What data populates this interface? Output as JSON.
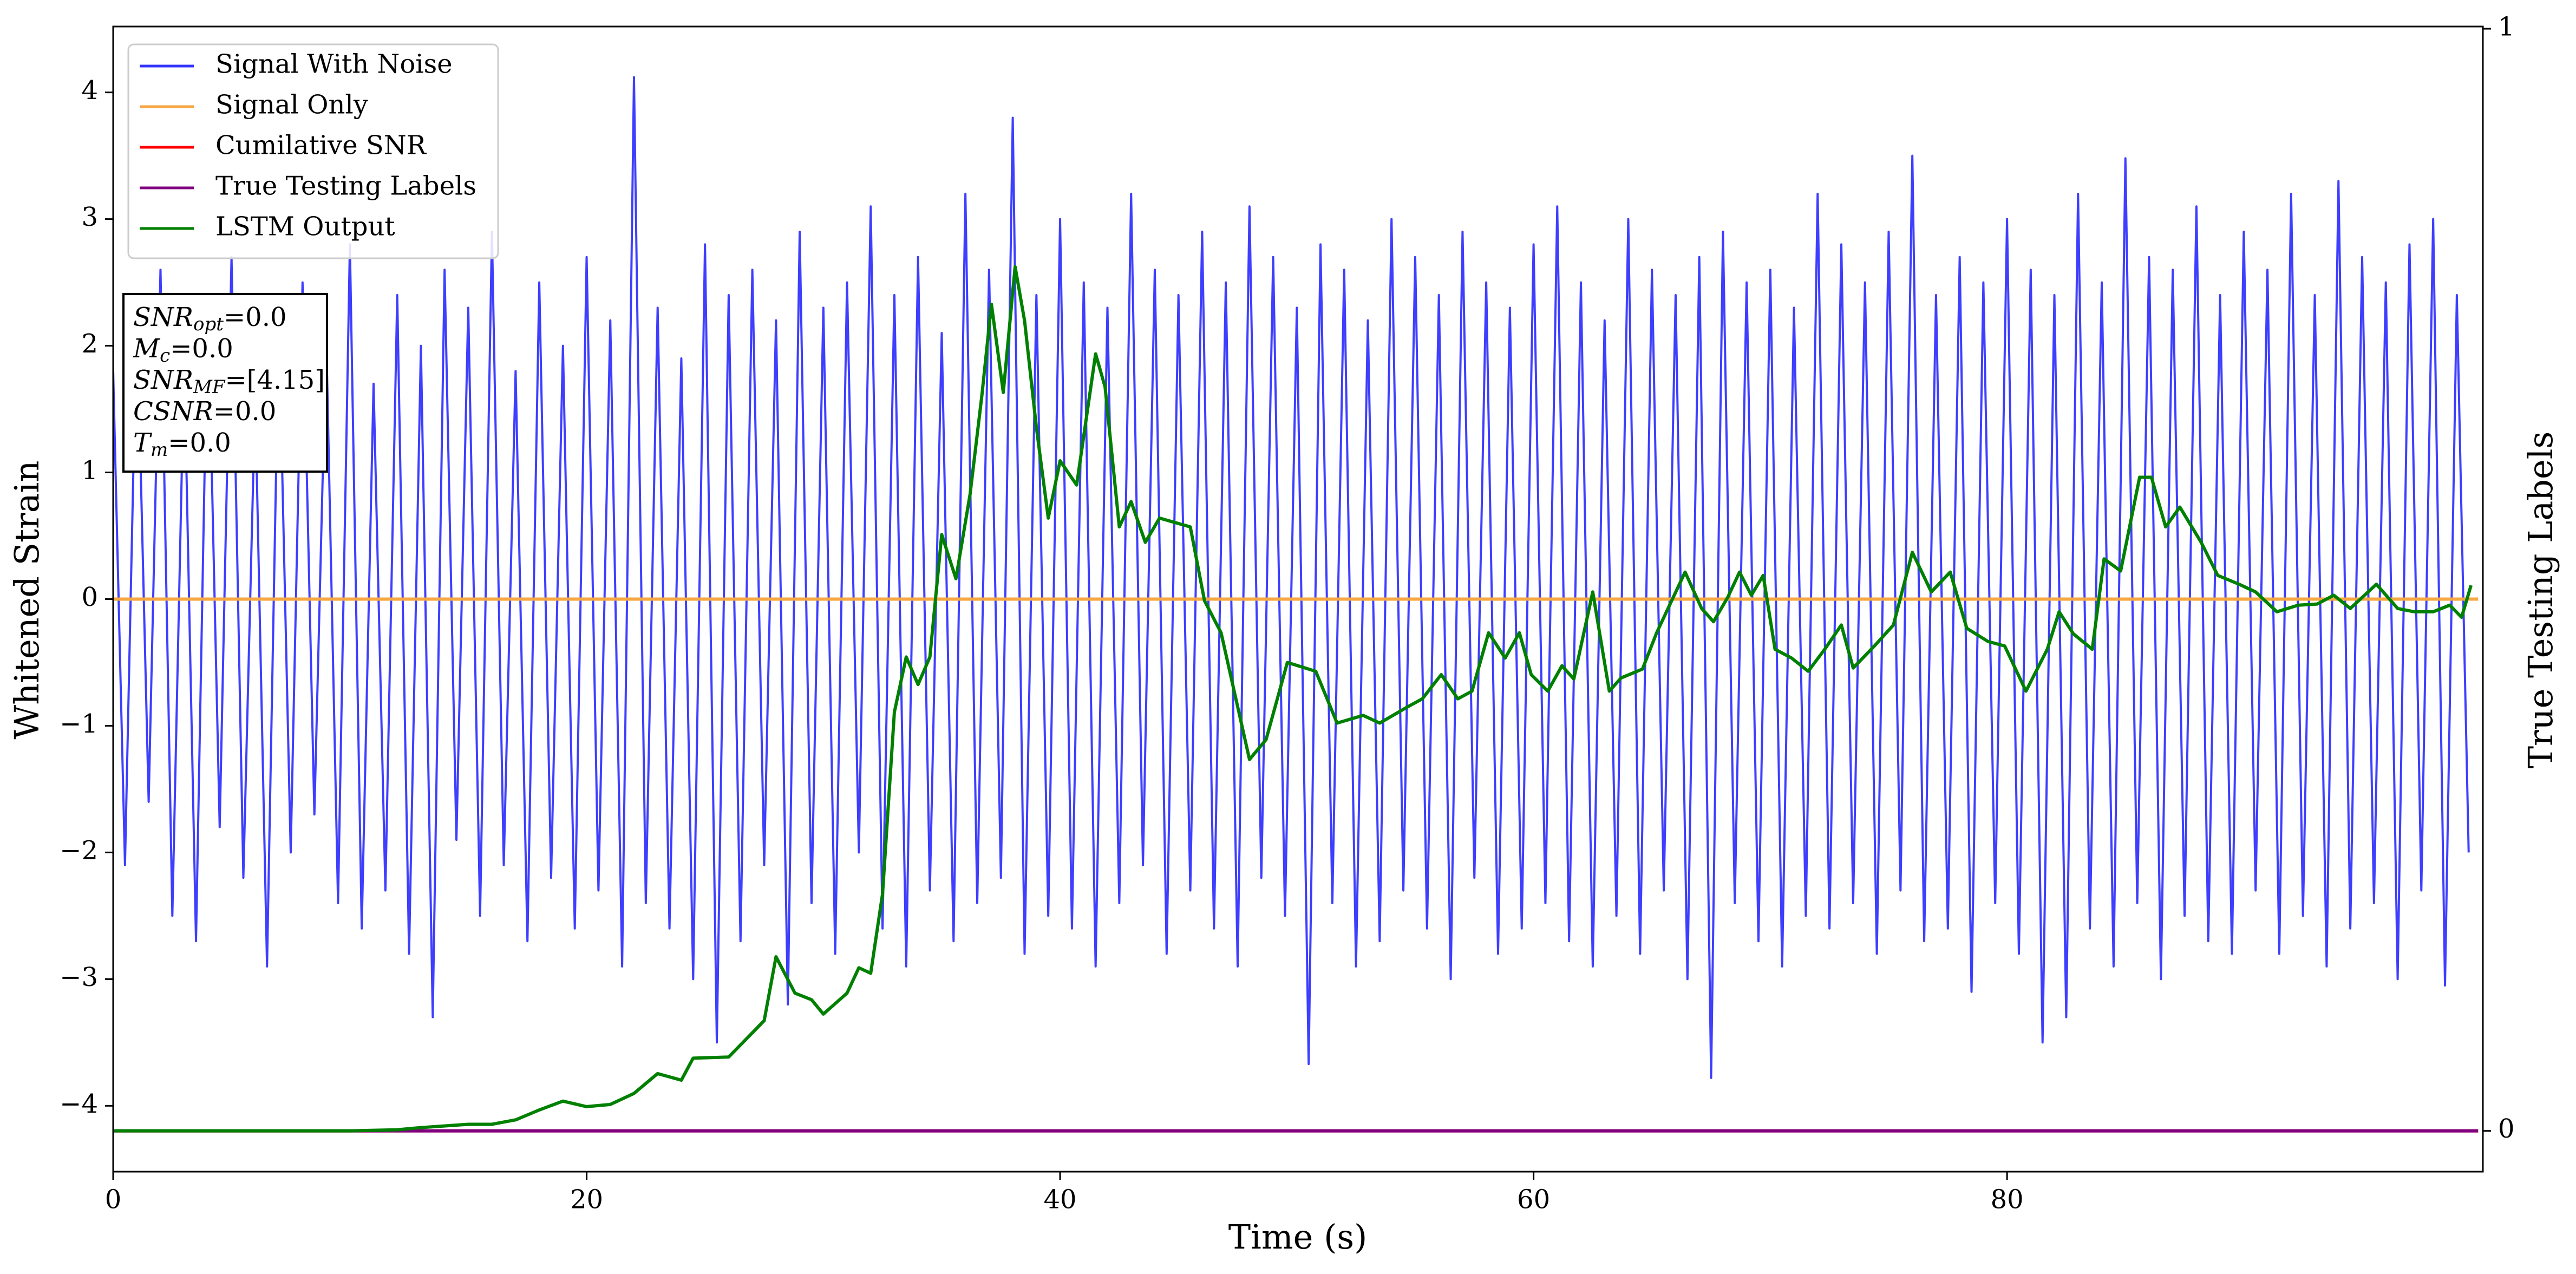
{
  "chart_data": {
    "type": "line",
    "xlabel": "Time (s)",
    "ylabel": "Whitened Strain",
    "y2label": "True Testing Labels",
    "xlim": [
      0,
      100.1
    ],
    "xticks": [
      0,
      20,
      40,
      60,
      80
    ],
    "ylim": [
      -4.52,
      4.52
    ],
    "yticks": [
      {
        "value": -4,
        "label": "−4"
      },
      {
        "value": -3,
        "label": "−3"
      },
      {
        "value": -2,
        "label": "−2"
      },
      {
        "value": -1,
        "label": "−1"
      },
      0,
      1,
      2,
      3,
      4
    ],
    "y2lim": [
      -0.037,
      1.002
    ],
    "y2ticks": [
      0,
      1
    ],
    "legend": "upper left",
    "annotations": [
      {
        "main": "SNR",
        "sub": "opt",
        "rest": "=0.0"
      },
      {
        "main": "M",
        "sub": "c",
        "rest": "=0.0"
      },
      {
        "main": "SNR",
        "sub": "MF",
        "rest": "=[4.15]"
      },
      {
        "main": "CSNR",
        "rest": "=0.0"
      },
      {
        "main": "T",
        "sub": "m",
        "rest": "=0.0"
      }
    ],
    "series": [
      {
        "name": "Signal With Noise",
        "color": "#3434ff",
        "x": [
          0,
          0.5,
          1,
          1.5,
          2,
          2.5,
          3,
          3.5,
          4,
          4.5,
          5,
          5.5,
          6,
          6.5,
          7,
          7.5,
          8,
          8.5,
          9,
          9.5,
          10,
          10.5,
          11,
          11.5,
          12,
          12.5,
          13,
          13.5,
          14,
          14.5,
          15,
          15.5,
          16,
          16.5,
          17,
          17.5,
          18,
          18.5,
          19,
          19.5,
          20,
          20.5,
          21,
          21.5,
          22,
          22.5,
          23,
          23.5,
          24,
          24.5,
          25,
          25.5,
          26,
          26.5,
          27,
          27.5,
          28,
          28.5,
          29,
          29.5,
          30,
          30.5,
          31,
          31.5,
          32,
          32.5,
          33,
          33.5,
          34,
          34.5,
          35,
          35.5,
          36,
          36.5,
          37,
          37.5,
          38,
          38.5,
          39,
          39.5,
          40,
          40.5,
          41,
          41.5,
          42,
          42.5,
          43,
          43.5,
          44,
          44.5,
          45,
          45.5,
          46,
          46.5,
          47,
          47.5,
          48,
          48.5,
          49,
          49.5,
          50,
          50.5,
          51,
          51.5,
          52,
          52.5,
          53,
          53.5,
          54,
          54.5,
          55,
          55.5,
          56,
          56.5,
          57,
          57.5,
          58,
          58.5,
          59,
          59.5,
          60,
          60.5,
          61,
          61.5,
          62,
          62.5,
          63,
          63.5,
          64,
          64.5,
          65,
          65.5,
          66,
          66.5,
          67,
          67.5,
          68,
          68.5,
          69,
          69.5,
          70,
          70.5,
          71,
          71.5,
          72,
          72.5,
          73,
          73.5,
          74,
          74.5,
          75,
          75.5,
          76,
          76.5,
          77,
          77.5,
          78,
          78.5,
          79,
          79.5,
          80,
          80.5,
          81,
          81.5,
          82,
          82.5,
          83,
          83.5,
          84,
          84.5,
          85,
          85.5,
          86,
          86.5,
          87,
          87.5,
          88,
          88.5,
          89,
          89.5,
          90,
          90.5,
          91,
          91.5,
          92,
          92.5,
          93,
          93.5,
          94,
          94.5,
          95,
          95.5,
          96,
          96.5,
          97,
          97.5,
          98,
          98.5,
          99,
          99.5
        ],
        "values": [
          1.8,
          -2.1,
          2.3,
          -1.6,
          2.6,
          -2.5,
          1.9,
          -2.7,
          2.4,
          -1.8,
          2.7,
          -2.2,
          1.6,
          -2.9,
          2.2,
          -2.0,
          2.5,
          -1.7,
          2.1,
          -2.4,
          2.8,
          -2.6,
          1.7,
          -2.3,
          2.4,
          -2.8,
          2.0,
          -3.3,
          2.6,
          -1.9,
          2.3,
          -2.5,
          2.9,
          -2.1,
          1.8,
          -2.7,
          2.5,
          -2.2,
          2.0,
          -2.6,
          2.7,
          -2.3,
          2.2,
          -2.9,
          4.12,
          -2.4,
          2.3,
          -2.6,
          1.9,
          -3.0,
          2.8,
          -3.5,
          2.4,
          -2.7,
          2.6,
          -2.1,
          2.2,
          -3.2,
          2.9,
          -2.4,
          2.3,
          -2.8,
          2.5,
          -2.0,
          3.1,
          -2.6,
          2.4,
          -2.9,
          2.7,
          -2.3,
          2.1,
          -2.7,
          3.2,
          -2.4,
          2.6,
          -2.2,
          3.8,
          -2.8,
          2.4,
          -2.5,
          3.0,
          -2.6,
          2.5,
          -2.9,
          2.3,
          -2.4,
          3.2,
          -2.1,
          2.6,
          -2.8,
          2.4,
          -2.3,
          2.9,
          -2.6,
          2.5,
          -2.9,
          3.1,
          -2.2,
          2.7,
          -2.5,
          2.3,
          -3.67,
          2.8,
          -2.4,
          2.6,
          -2.9,
          2.2,
          -2.7,
          3.0,
          -2.3,
          2.7,
          -2.6,
          2.4,
          -3.0,
          2.9,
          -2.2,
          2.5,
          -2.8,
          2.3,
          -2.6,
          2.8,
          -2.4,
          3.1,
          -2.7,
          2.5,
          -2.9,
          2.2,
          -2.5,
          3.0,
          -2.8,
          2.6,
          -2.3,
          2.4,
          -3.0,
          2.7,
          -3.78,
          2.9,
          -2.4,
          2.5,
          -2.7,
          2.6,
          -2.9,
          2.3,
          -2.5,
          3.2,
          -2.6,
          2.8,
          -2.4,
          2.5,
          -2.8,
          2.9,
          -2.3,
          3.5,
          -2.7,
          2.4,
          -2.6,
          2.7,
          -3.1,
          2.5,
          -2.4,
          3.0,
          -2.8,
          2.6,
          -3.5,
          2.4,
          -3.3,
          3.2,
          -2.6,
          2.5,
          -2.9,
          3.48,
          -2.4,
          2.7,
          -3.0,
          2.6,
          -2.5,
          3.1,
          -2.7,
          2.4,
          -2.8,
          2.9,
          -2.3,
          2.6,
          -2.8,
          3.2,
          -2.5,
          2.4,
          -2.9,
          3.3,
          -2.6,
          2.7,
          -2.4,
          2.5,
          -3.0,
          2.8,
          -2.3,
          3.0,
          -3.05,
          2.4,
          -2.0
        ]
      },
      {
        "name": "Signal Only",
        "color": "#f5a742",
        "x": [
          0,
          99.9
        ],
        "values": [
          0,
          0
        ]
      },
      {
        "name": "Cumilative SNR",
        "color": "#ff0000",
        "axis": "y2",
        "x": [
          0,
          99.9
        ],
        "values": [
          0,
          0
        ]
      },
      {
        "name": "True Testing Labels",
        "color": "#800080",
        "axis": "y2",
        "x": [
          0,
          99.9
        ],
        "values": [
          0,
          0
        ]
      },
      {
        "name": "LSTM Output",
        "color": "#008000",
        "axis": "y2",
        "x": [
          0,
          2,
          4,
          6,
          8,
          10,
          12,
          13,
          15,
          16,
          17,
          18,
          19,
          20,
          21,
          22,
          23,
          24,
          24.5,
          26,
          27,
          27.5,
          28,
          28.8,
          29.5,
          30,
          31,
          31.5,
          32,
          32.5,
          33,
          33.5,
          34,
          34.5,
          35,
          35.6,
          36.2,
          36.7,
          37.1,
          37.6,
          38.1,
          38.5,
          39,
          39.5,
          40,
          40.7,
          41.5,
          41.9,
          42.5,
          43,
          43.6,
          44.2,
          45.5,
          46.1,
          46.8,
          48,
          48.7,
          49.6,
          50.8,
          51.7,
          52.8,
          53.5,
          54.7,
          55.3,
          56.1,
          56.8,
          57.4,
          58.1,
          58.8,
          59.4,
          59.9,
          60.6,
          61.2,
          61.7,
          62.5,
          63.2,
          63.7,
          64.6,
          65.2,
          66.4,
          67.1,
          67.6,
          68.2,
          68.7,
          69.2,
          69.7,
          70.2,
          70.9,
          71.6,
          72.3,
          73,
          73.5,
          74.4,
          75.2,
          76,
          76.8,
          77.6,
          78.3,
          79.2,
          79.9,
          80.8,
          81.7,
          82.2,
          82.8,
          83.6,
          84.1,
          84.8,
          85.6,
          86.1,
          86.7,
          87.3,
          88.2,
          88.9,
          89.8,
          90.5,
          91.4,
          92.3,
          93.1,
          93.8,
          94.5,
          95.6,
          96.5,
          97.2,
          98,
          98.7,
          99.2,
          99.6
        ],
        "values": [
          0,
          0,
          0,
          0,
          0,
          0,
          0.001,
          0.003,
          0.006,
          0.006,
          0.01,
          0.019,
          0.027,
          0.022,
          0.024,
          0.034,
          0.052,
          0.046,
          0.066,
          0.067,
          0.089,
          0.1,
          0.158,
          0.125,
          0.119,
          0.106,
          0.125,
          0.148,
          0.143,
          0.215,
          0.38,
          0.43,
          0.405,
          0.43,
          0.541,
          0.501,
          0.578,
          0.668,
          0.75,
          0.67,
          0.784,
          0.735,
          0.638,
          0.556,
          0.608,
          0.586,
          0.705,
          0.675,
          0.548,
          0.571,
          0.534,
          0.556,
          0.548,
          0.481,
          0.452,
          0.337,
          0.355,
          0.425,
          0.417,
          0.37,
          0.377,
          0.37,
          0.385,
          0.392,
          0.414,
          0.392,
          0.399,
          0.452,
          0.429,
          0.452,
          0.414,
          0.399,
          0.422,
          0.41,
          0.489,
          0.399,
          0.411,
          0.419,
          0.452,
          0.507,
          0.474,
          0.462,
          0.484,
          0.507,
          0.486,
          0.504,
          0.437,
          0.429,
          0.417,
          0.437,
          0.459,
          0.42,
          0.44,
          0.459,
          0.525,
          0.489,
          0.507,
          0.456,
          0.444,
          0.44,
          0.399,
          0.437,
          0.471,
          0.451,
          0.437,
          0.519,
          0.508,
          0.593,
          0.593,
          0.548,
          0.566,
          0.534,
          0.504,
          0.496,
          0.489,
          0.471,
          0.477,
          0.478,
          0.486,
          0.474,
          0.496,
          0.474,
          0.471,
          0.471,
          0.477,
          0.466,
          0.495
        ]
      }
    ]
  }
}
